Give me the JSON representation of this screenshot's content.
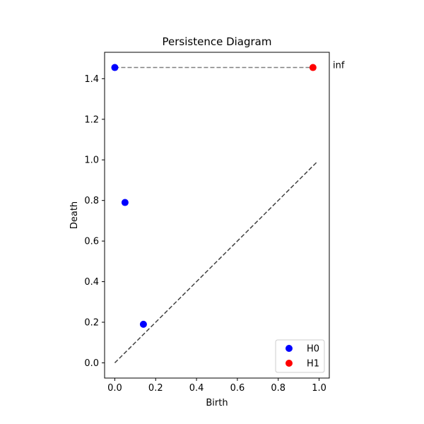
{
  "chart_data": {
    "type": "scatter",
    "title": "Persistence Diagram",
    "xlabel": "Birth",
    "ylabel": "Death",
    "xlim": [
      -0.05,
      1.05
    ],
    "ylim": [
      -0.075,
      1.53
    ],
    "xticks": [
      0.0,
      0.2,
      0.4,
      0.6,
      0.8,
      1.0
    ],
    "xtick_labels": [
      "0.0",
      "0.2",
      "0.4",
      "0.6",
      "0.8",
      "1.0"
    ],
    "yticks": [
      0.0,
      0.2,
      0.4,
      0.6,
      0.8,
      1.0,
      1.2,
      1.4
    ],
    "ytick_labels": [
      "0.0",
      "0.2",
      "0.4",
      "0.6",
      "0.8",
      "1.0",
      "1.2",
      "1.4"
    ],
    "grid": false,
    "legend_position": "lower-right",
    "inf_label": "inf",
    "inf_value": 1.455,
    "inf_line": {
      "x": [
        0.0,
        0.97
      ],
      "color": "#808080",
      "style": "dashed"
    },
    "diagonal": {
      "x": [
        0.0,
        0.99
      ],
      "y": [
        0.0,
        0.99
      ],
      "color": "#404040",
      "style": "dashed"
    },
    "series": [
      {
        "name": "H0",
        "color": "#0000ff",
        "x": [
          0.0,
          0.05,
          0.14
        ],
        "y": [
          1.455,
          0.79,
          0.19
        ]
      },
      {
        "name": "H1",
        "color": "#ff0000",
        "x": [
          0.97
        ],
        "y": [
          1.455
        ]
      }
    ]
  }
}
